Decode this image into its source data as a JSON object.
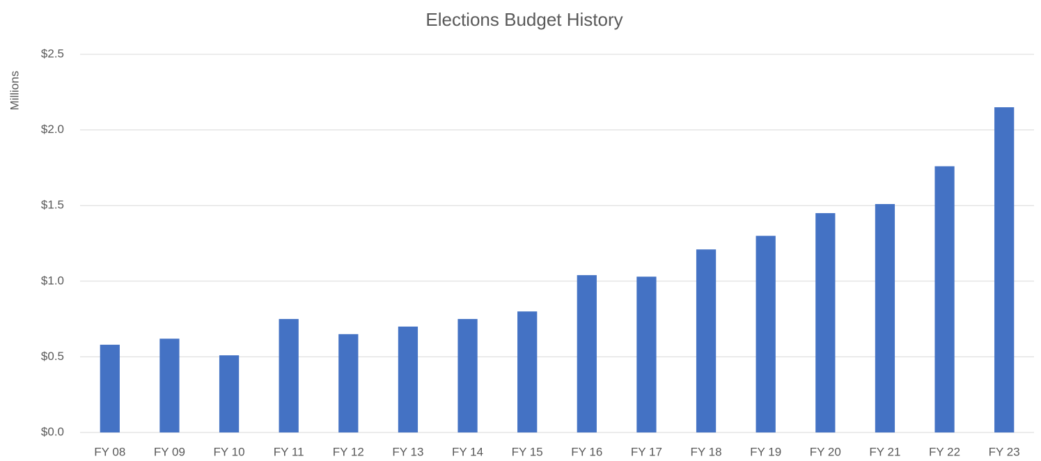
{
  "chart_data": {
    "type": "bar",
    "title": "Elections Budget History",
    "y_axis_label": "Millions",
    "categories": [
      "FY 08",
      "FY 09",
      "FY 10",
      "FY 11",
      "FY 12",
      "FY 13",
      "FY 14",
      "FY 15",
      "FY 16",
      "FY 17",
      "FY 18",
      "FY 19",
      "FY 20",
      "FY 21",
      "FY 22",
      "FY 23"
    ],
    "values": [
      0.58,
      0.62,
      0.51,
      0.75,
      0.65,
      0.7,
      0.75,
      0.8,
      1.04,
      1.03,
      1.21,
      1.3,
      1.45,
      1.51,
      1.76,
      2.15
    ],
    "color": "#4472c4",
    "ylim": [
      0,
      2.5
    ],
    "yticks": [
      {
        "value": 0,
        "label": "$0.0"
      },
      {
        "value": 0.5,
        "label": "$0.5"
      },
      {
        "value": 1,
        "label": "$1.0"
      },
      {
        "value": 1.5,
        "label": "$1.5"
      },
      {
        "value": 2,
        "label": "$2.0"
      },
      {
        "value": 2.5,
        "label": "$2.5"
      }
    ],
    "grid": true
  }
}
